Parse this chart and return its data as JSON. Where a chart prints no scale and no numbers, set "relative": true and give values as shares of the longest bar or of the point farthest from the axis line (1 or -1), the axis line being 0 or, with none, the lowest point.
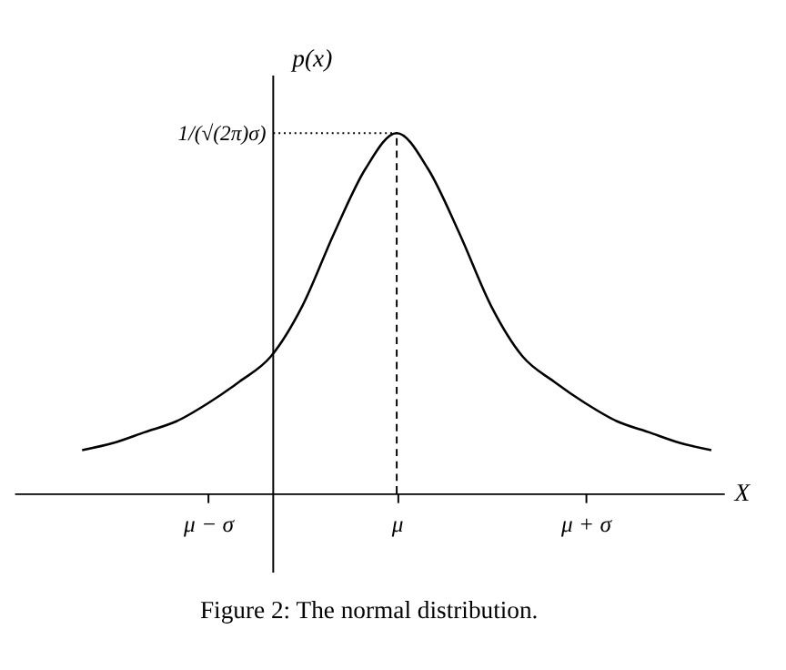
{
  "chart_data": {
    "type": "line",
    "relative": true,
    "xlabel": "X",
    "ylabel": "p(x)",
    "categories": [
      null,
      null,
      null,
      null,
      "μ − σ",
      null,
      null,
      null,
      null,
      null,
      "μ",
      null,
      null,
      null,
      null,
      null,
      "μ + σ",
      null,
      null,
      null,
      null
    ],
    "series": [
      {
        "color": "#000000",
        "values": [
          0.12,
          0.14,
          0.17,
          0.2,
          0.25,
          0.31,
          0.38,
          0.52,
          0.72,
          0.9,
          1,
          0.9,
          0.72,
          0.52,
          0.38,
          0.31,
          0.25,
          0.2,
          0.17,
          0.14,
          0.12
        ]
      }
    ],
    "ref_lines": [
      {
        "axis": "x",
        "value": "μ",
        "line_style": "dashed"
      },
      {
        "axis": "y",
        "value": 1,
        "label": "1/(√(2π)σ)",
        "line_style": "dotted"
      }
    ],
    "annotations": [
      "Figure 2: The normal distribution."
    ],
    "line_style": "solid",
    "marker": "none",
    "grid": false,
    "legend": false
  }
}
